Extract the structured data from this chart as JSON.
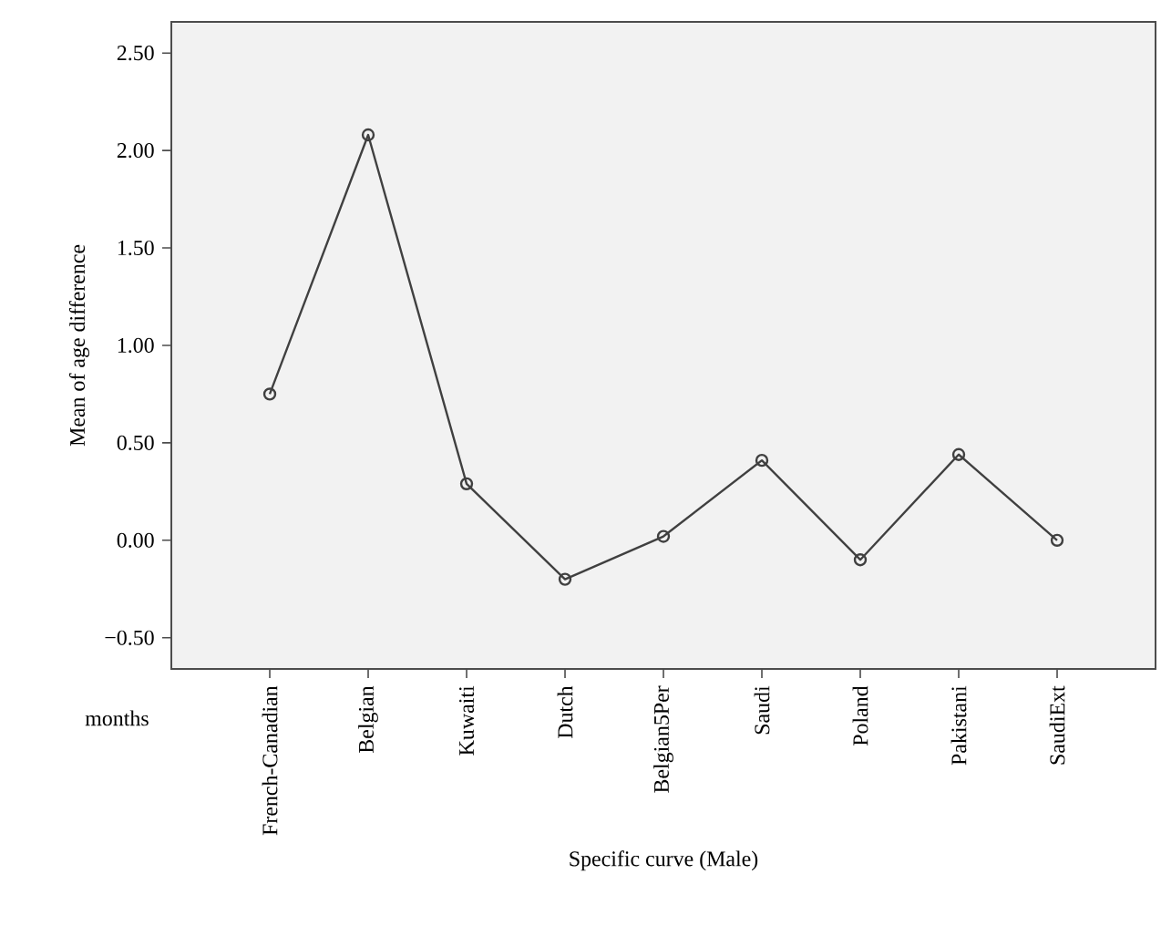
{
  "chart_data": {
    "type": "line",
    "xlabel": "Specific curve (Male)",
    "ylabel": "Mean of age difference",
    "categories": [
      "French-Canadian",
      "Belgian",
      "Kuwaiti",
      "Dutch",
      "Belgian5Per",
      "Saudi",
      "Poland",
      "Pakistani",
      "SaudiExt"
    ],
    "values": [
      0.75,
      2.08,
      0.29,
      -0.2,
      0.02,
      0.41,
      -0.1,
      0.44,
      0.0
    ],
    "color": "#404040",
    "marker": "circle",
    "line_style": "solid",
    "grid": false,
    "ylim": [
      -0.66,
      2.66
    ],
    "yticks": [
      {
        "value": -0.5,
        "label": "−0.50"
      },
      {
        "value": 0,
        "label": "0.00"
      },
      {
        "value": 0.5,
        "label": "0.50"
      },
      {
        "value": 1,
        "label": "1.00"
      },
      {
        "value": 1.5,
        "label": "1.50"
      },
      {
        "value": 2,
        "label": "2.00"
      },
      {
        "value": 2.5,
        "label": "2.50"
      }
    ],
    "annotations": [
      "months"
    ]
  }
}
